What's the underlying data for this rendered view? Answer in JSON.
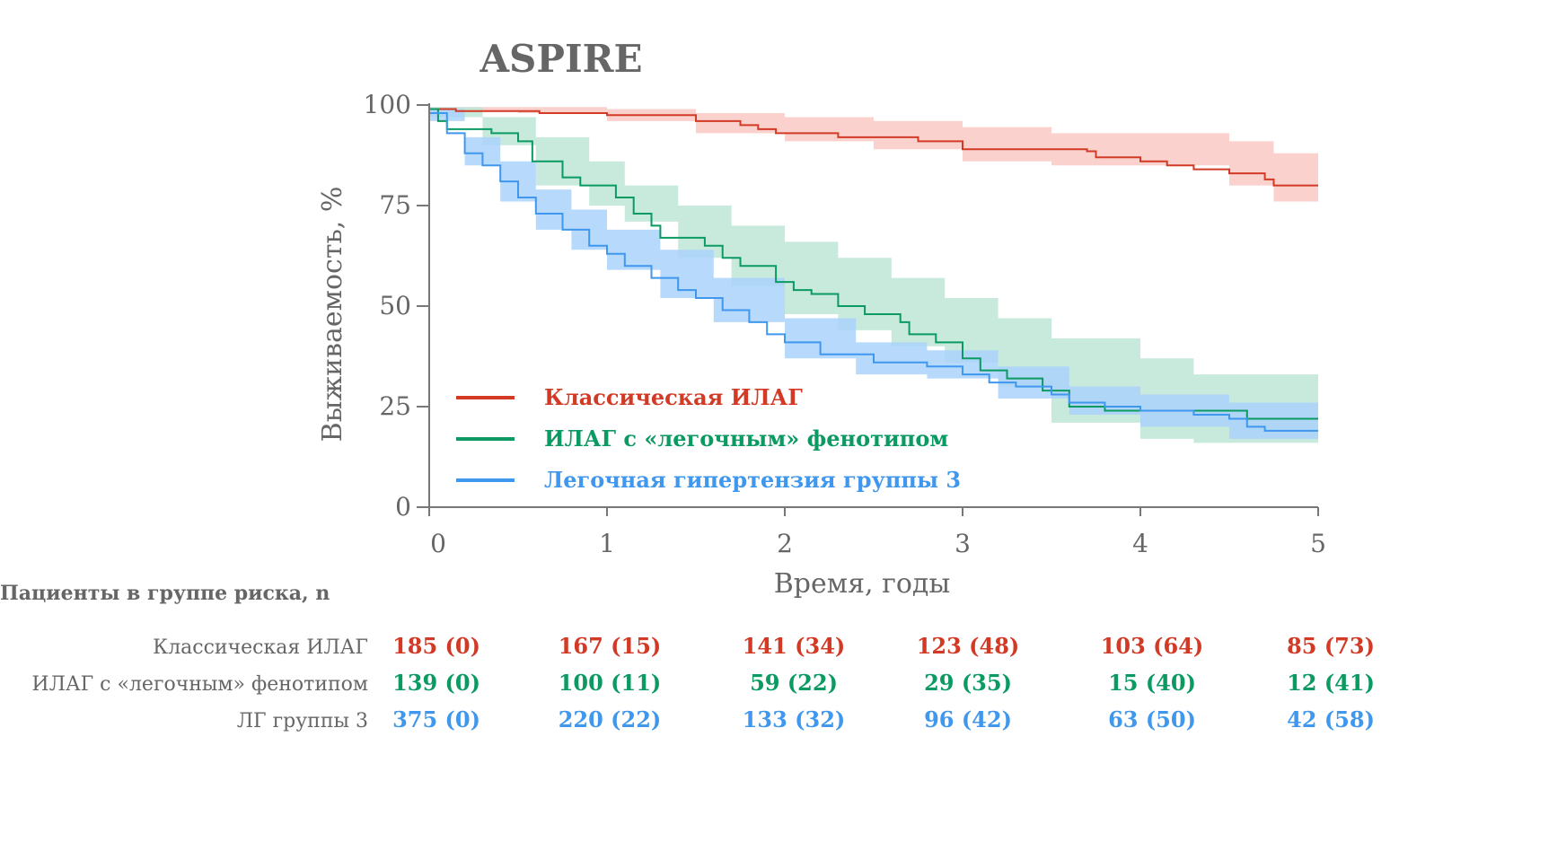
{
  "chart_data": {
    "type": "line",
    "subtype": "kaplan-meier",
    "title": "ASPIRE",
    "xlabel": "Время, годы",
    "ylabel": "Выживаемость, %",
    "xlim": [
      0,
      5
    ],
    "ylim": [
      0,
      100
    ],
    "xticks": [
      "0",
      "1",
      "2",
      "3",
      "4",
      "5"
    ],
    "yticks": [
      "0",
      "25",
      "50",
      "75",
      "100"
    ],
    "grid": false,
    "legend_position": "bottom-left",
    "series": [
      {
        "name": "Классическая ИЛАГ",
        "color": "#d23a26",
        "ci_color": "#f9c9c4",
        "x": [
          0,
          0.15,
          0.62,
          1.0,
          1.5,
          1.75,
          1.85,
          1.95,
          2.3,
          2.75,
          3.0,
          3.7,
          3.75,
          4.0,
          4.15,
          4.3,
          4.5,
          4.7,
          4.75,
          5.0
        ],
        "y": [
          99,
          98.5,
          98,
          97.5,
          96,
          95,
          94,
          93,
          92,
          91,
          89,
          88.5,
          87,
          86,
          85,
          84,
          83,
          81.5,
          80,
          80
        ],
        "ci_x": [
          0,
          0.5,
          1.0,
          1.5,
          2.0,
          2.5,
          3.0,
          3.5,
          4.0,
          4.5,
          4.75,
          5.0
        ],
        "ci_upper": [
          99.5,
          99.5,
          99,
          98,
          97,
          96,
          94.5,
          93,
          93,
          91,
          88,
          87
        ],
        "ci_lower": [
          98.5,
          98,
          96,
          93,
          91,
          89,
          86,
          85,
          85,
          80,
          76,
          73
        ]
      },
      {
        "name": "ИЛАГ с «легочным» фенотипом",
        "color": "#0a9a62",
        "ci_color": "#bde6d7",
        "x": [
          0,
          0.05,
          0.1,
          0.35,
          0.5,
          0.58,
          0.75,
          0.85,
          1.0,
          1.05,
          1.15,
          1.25,
          1.3,
          1.55,
          1.65,
          1.75,
          1.95,
          2.05,
          2.15,
          2.3,
          2.45,
          2.65,
          2.7,
          2.85,
          3.0,
          3.1,
          3.25,
          3.45,
          3.6,
          3.8,
          4.0,
          4.6,
          5.0
        ],
        "y": [
          99,
          96,
          94,
          93,
          91,
          86,
          82,
          80,
          80,
          77,
          73,
          70,
          67,
          65,
          62,
          60,
          56,
          54,
          53,
          50,
          48,
          46,
          43,
          41,
          37,
          34,
          32,
          29,
          25,
          24,
          24,
          22,
          22
        ],
        "ci_x": [
          0,
          0.3,
          0.6,
          0.9,
          1.1,
          1.4,
          1.7,
          2.0,
          2.3,
          2.6,
          2.9,
          3.2,
          3.5,
          4.0,
          4.3,
          5.0
        ],
        "ci_upper": [
          99.5,
          97,
          92,
          86,
          80,
          75,
          70,
          66,
          62,
          57,
          52,
          47,
          42,
          37,
          33,
          33
        ],
        "ci_lower": [
          97,
          90,
          80,
          75,
          71,
          62,
          55,
          48,
          44,
          40,
          36,
          30,
          21,
          17,
          16,
          14
        ]
      },
      {
        "name": "Легочная гипертензия группы 3",
        "color": "#3f97ee",
        "ci_color": "#aad2fb",
        "x": [
          0,
          0.1,
          0.2,
          0.3,
          0.4,
          0.5,
          0.6,
          0.75,
          0.9,
          1.0,
          1.1,
          1.25,
          1.4,
          1.5,
          1.65,
          1.8,
          1.9,
          2.0,
          2.2,
          2.5,
          2.8,
          3.0,
          3.15,
          3.3,
          3.5,
          3.6,
          3.8,
          4.0,
          4.3,
          4.5,
          4.6,
          4.7,
          5.0
        ],
        "y": [
          98,
          93,
          88,
          85,
          81,
          77,
          73,
          69,
          65,
          63,
          60,
          57,
          54,
          52,
          49,
          46,
          43,
          41,
          38,
          36,
          35,
          33,
          31,
          30,
          28,
          26,
          25,
          24,
          23,
          22,
          20,
          19,
          19
        ],
        "ci_x": [
          0,
          0.2,
          0.4,
          0.6,
          0.8,
          1.0,
          1.3,
          1.6,
          2.0,
          2.4,
          2.8,
          3.2,
          3.6,
          4.0,
          4.5,
          5.0
        ],
        "ci_upper": [
          99,
          92,
          86,
          79,
          74,
          69,
          64,
          57,
          47,
          41,
          39,
          35,
          30,
          28,
          26,
          24
        ],
        "ci_lower": [
          96,
          85,
          76,
          69,
          64,
          59,
          52,
          46,
          37,
          33,
          32,
          27,
          23,
          20,
          17,
          15
        ]
      }
    ]
  },
  "risk_table": {
    "header": "Пациенты в группе риска, n",
    "rows": [
      {
        "label": "Классическая ИЛАГ",
        "color": "#d23a26",
        "values": [
          "185 (0)",
          "167 (15)",
          "141 (34)",
          "123 (48)",
          "103 (64)",
          "85 (73)"
        ]
      },
      {
        "label": "ИЛАГ с «легочным» фенотипом",
        "color": "#0a9a62",
        "values": [
          "139 (0)",
          "100 (11)",
          "59 (22)",
          "29 (35)",
          "15 (40)",
          "12 (41)"
        ]
      },
      {
        "label": "ЛГ группы 3",
        "color": "#3f97ee",
        "values": [
          "375 (0)",
          "220 (22)",
          "133 (32)",
          "96 (42)",
          "63 (50)",
          "42 (58)"
        ]
      }
    ]
  }
}
